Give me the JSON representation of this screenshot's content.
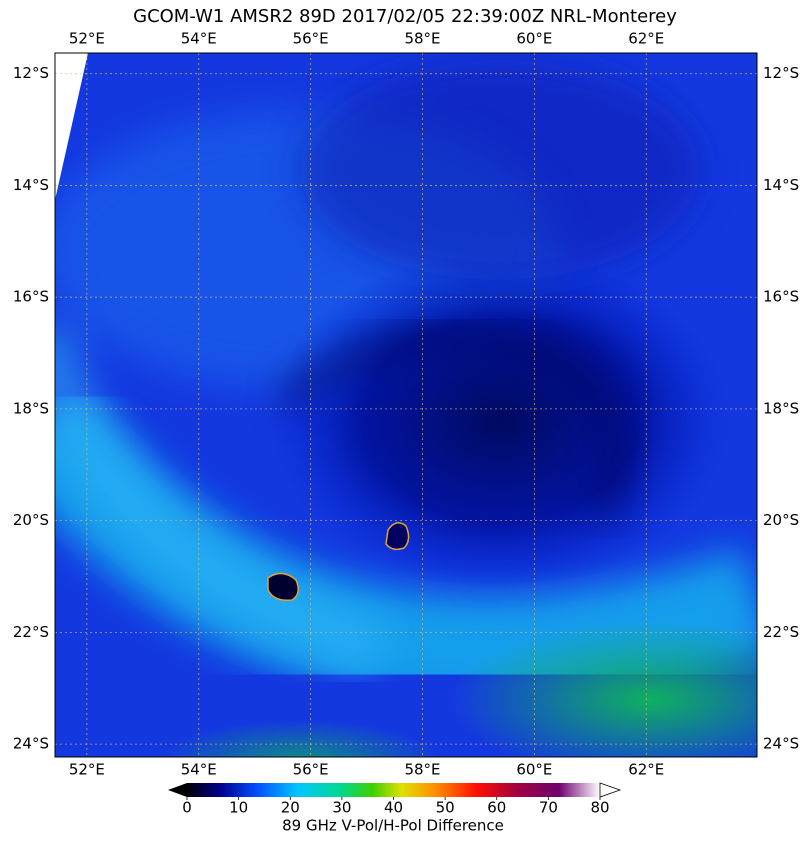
{
  "title": "GCOM-W1 AMSR2 89D 2017/02/05 22:39:00Z NRL-Monterey",
  "map": {
    "xlim": [
      51.43,
      63.98
    ],
    "ylim": [
      -24.23,
      -11.63
    ],
    "xticks": [
      {
        "value": 52,
        "label": "52°E"
      },
      {
        "value": 54,
        "label": "54°E"
      },
      {
        "value": 56,
        "label": "56°E"
      },
      {
        "value": 58,
        "label": "58°E"
      },
      {
        "value": 60,
        "label": "60°E"
      },
      {
        "value": 62,
        "label": "62°E"
      }
    ],
    "yticks": [
      {
        "value": -12,
        "label": "12°S"
      },
      {
        "value": -14,
        "label": "14°S"
      },
      {
        "value": -16,
        "label": "16°S"
      },
      {
        "value": -18,
        "label": "18°S"
      },
      {
        "value": -20,
        "label": "20°S"
      },
      {
        "value": -22,
        "label": "22°S"
      },
      {
        "value": -24,
        "label": "24°S"
      }
    ]
  },
  "colorbar": {
    "ticks": [
      0,
      10,
      20,
      30,
      40,
      50,
      60,
      70,
      80
    ],
    "label": "89 GHz V-Pol/H-Pol Difference"
  }
}
